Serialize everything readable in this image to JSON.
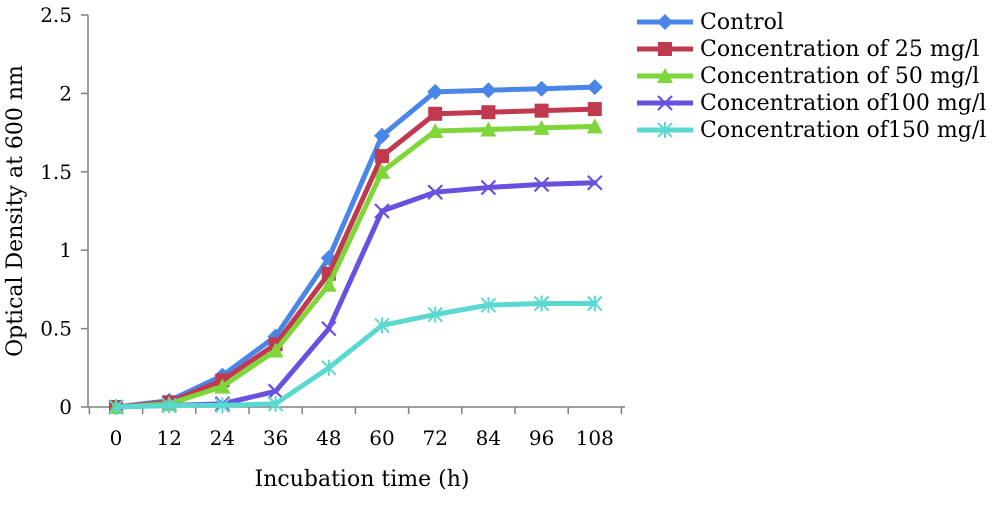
{
  "chart_data": {
    "type": "line",
    "title": "",
    "xlabel": "Incubation time (h)",
    "ylabel": "Optical Density at 600 nm",
    "categories": [
      "0",
      "12",
      "24",
      "36",
      "48",
      "60",
      "72",
      "84",
      "96",
      "108"
    ],
    "y_ticks": [
      "0",
      "0.5",
      "1",
      "1.5",
      "2",
      "2.5"
    ],
    "ylim": [
      0,
      2.5
    ],
    "grid": false,
    "legend_position": "top-right",
    "series": [
      {
        "name": "Control",
        "color": "#4A86E8",
        "marker": "diamond",
        "values": [
          0,
          0.04,
          0.2,
          0.45,
          0.95,
          1.73,
          2.01,
          2.02,
          2.03,
          2.04
        ]
      },
      {
        "name": "Concentration of 25 mg/l",
        "color": "#C0394F",
        "marker": "square",
        "values": [
          0,
          0.03,
          0.17,
          0.4,
          0.85,
          1.6,
          1.87,
          1.88,
          1.89,
          1.9
        ]
      },
      {
        "name": "Concentration of 50 mg/l",
        "color": "#7ED638",
        "marker": "triangle",
        "values": [
          0,
          0.02,
          0.13,
          0.36,
          0.78,
          1.5,
          1.76,
          1.77,
          1.78,
          1.79
        ]
      },
      {
        "name": "Concentration of100 mg/l",
        "color": "#6A50DE",
        "marker": "x",
        "values": [
          0,
          0.01,
          0.02,
          0.1,
          0.5,
          1.25,
          1.37,
          1.4,
          1.42,
          1.43
        ]
      },
      {
        "name": "Concentration of150 mg/l",
        "color": "#5BD9D0",
        "marker": "asterisk",
        "values": [
          0,
          0.01,
          0.01,
          0.02,
          0.25,
          0.52,
          0.59,
          0.65,
          0.66,
          0.66
        ]
      }
    ]
  }
}
